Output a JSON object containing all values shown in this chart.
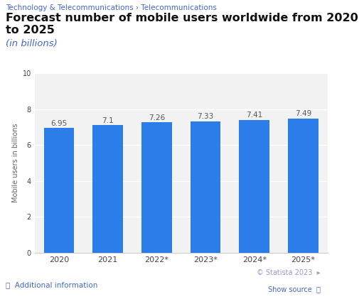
{
  "categories": [
    "2020",
    "2021",
    "2022*",
    "2023*",
    "2024*",
    "2025*"
  ],
  "values": [
    6.95,
    7.1,
    7.26,
    7.33,
    7.41,
    7.49
  ],
  "bar_color": "#2b7de9",
  "ylabel": "Mobile users in billions",
  "ylim": [
    0,
    10
  ],
  "yticks": [
    0,
    2,
    4,
    6,
    8,
    10
  ],
  "title": "Forecast number of mobile users worldwide from 2020 to 2025",
  "subtitle": "(in billions)",
  "breadcrumb": "Technology & Telecommunications › Telecommunications",
  "footer_left": "ⓘ  Additional information",
  "footer_right_1": "© Statista 2023  ▸",
  "footer_right_2": "Show source  ⓘ",
  "background_color": "#ffffff",
  "plot_bg_color": "#f2f2f2",
  "grid_color": "#ffffff",
  "bar_value_color": "#555555",
  "bar_value_fontsize": 7.5,
  "xlabel_fontsize": 8,
  "ylabel_fontsize": 7,
  "title_fontsize": 11.5,
  "subtitle_fontsize": 9.5,
  "breadcrumb_color": "#4466cc",
  "breadcrumb_fontsize": 7.5,
  "footer_color": "#4466cc",
  "footer_right_color1": "#9999cc"
}
